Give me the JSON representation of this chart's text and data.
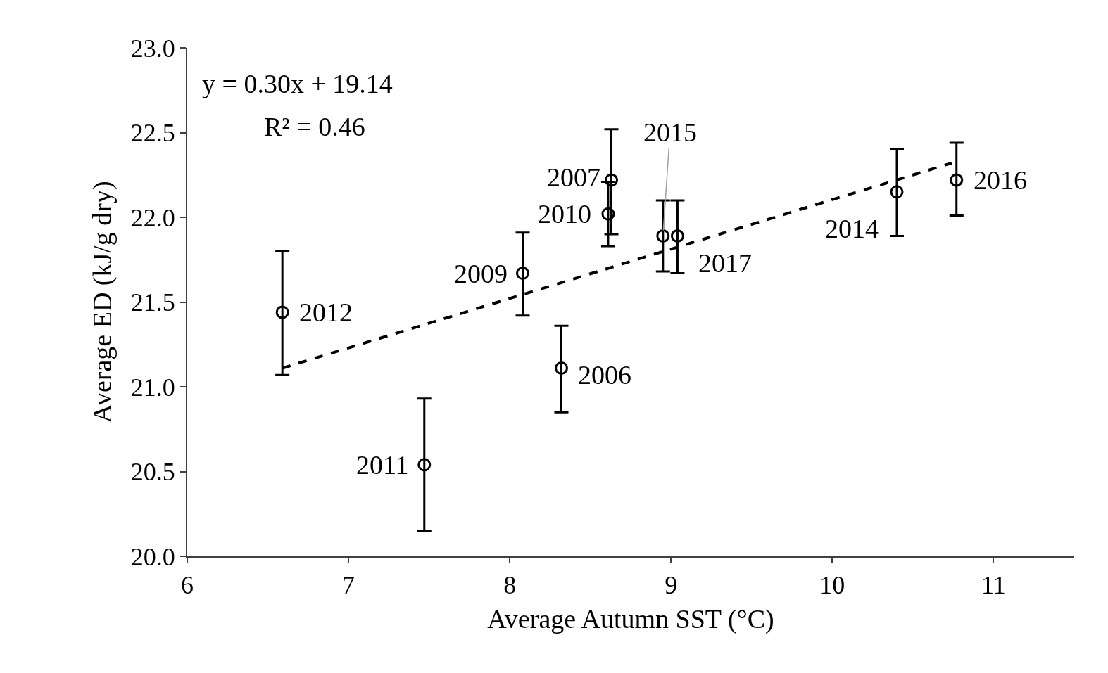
{
  "chart_data": {
    "type": "scatter",
    "xlabel": "Average Autumn SST (°C)",
    "ylabel": "Average ED (kJ/g dry)",
    "xlim": [
      6,
      11.5
    ],
    "xticks": [
      6,
      7,
      8,
      9,
      10,
      11
    ],
    "ylim": [
      20,
      23
    ],
    "yticks": [
      {
        "value": 20,
        "label": "20.0"
      },
      {
        "value": 20.5,
        "label": "20.5"
      },
      {
        "value": 21,
        "label": "21.0"
      },
      {
        "value": 21.5,
        "label": "21.5"
      },
      {
        "value": 22,
        "label": "22.0"
      },
      {
        "value": 22.5,
        "label": "22.5"
      },
      {
        "value": 23,
        "label": "23.0"
      }
    ],
    "series": [
      {
        "color": "#000000",
        "marker": "circle",
        "x": [
          6.59,
          7.47,
          8.08,
          8.32,
          8.63,
          8.61,
          8.95,
          9.04,
          10.4,
          10.77
        ],
        "values": [
          21.44,
          20.54,
          21.67,
          21.11,
          22.22,
          22.02,
          21.89,
          21.89,
          22.15,
          22.22
        ],
        "errors": [
          [
            21.07,
            21.8
          ],
          [
            20.15,
            20.93
          ],
          [
            21.42,
            21.91
          ],
          [
            20.85,
            21.36
          ],
          [
            21.9,
            22.52
          ],
          [
            21.83,
            22.21
          ],
          [
            21.68,
            22.1
          ],
          [
            21.67,
            22.1
          ],
          [
            21.89,
            22.4
          ],
          [
            22.01,
            22.44
          ]
        ]
      },
      {
        "type": "line",
        "color": "#000000",
        "line_style": "dashed",
        "marker": "none",
        "x": [
          6.59,
          10.74
        ],
        "values": [
          21.11,
          22.32
        ]
      }
    ],
    "annotations": [
      "y = 0.30x + 19.14",
      "R² = 0.46",
      {
        "text": "2012",
        "x": 6.59,
        "y": 21.44
      },
      {
        "text": "2011",
        "x": 7.47,
        "y": 20.54
      },
      {
        "text": "2009",
        "x": 8.08,
        "y": 21.67
      },
      {
        "text": "2006",
        "x": 8.32,
        "y": 21.11
      },
      {
        "text": "2007",
        "x": 8.63,
        "y": 22.22
      },
      {
        "text": "2010",
        "x": 8.61,
        "y": 22.02
      },
      {
        "text": "2015",
        "x": 8.95,
        "y": 21.89
      },
      {
        "text": "2017",
        "x": 9.04,
        "y": 21.89
      },
      {
        "text": "2014",
        "x": 10.4,
        "y": 22.15
      },
      {
        "text": "2016",
        "x": 10.77,
        "y": 22.22
      }
    ]
  }
}
